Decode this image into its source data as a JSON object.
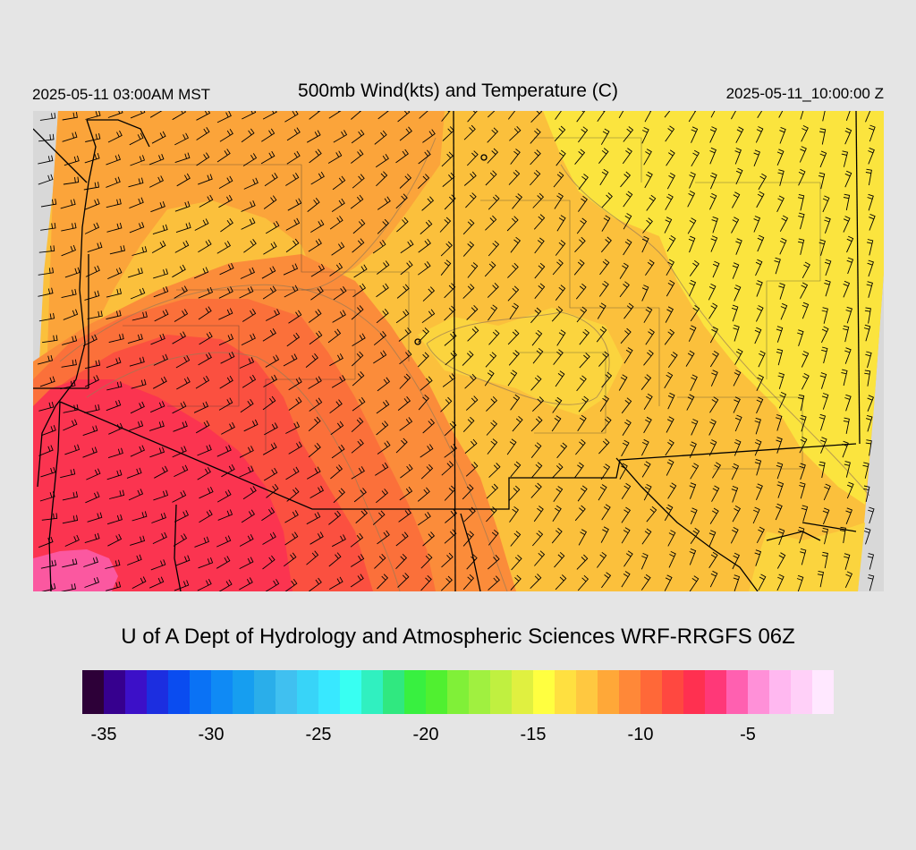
{
  "header": {
    "local_time": "2025-05-11 03:00AM MST",
    "title": "500mb Wind(kts) and Temperature (C)",
    "valid_time": "2025-05-11_10:00:00 Z"
  },
  "credit": "U of A Dept of Hydrology and Atmospheric Sciences WRF-RRGFS 06Z",
  "map": {
    "field": "500mb temperature (C) with wind barbs (kts)",
    "region": "Southwestern United States",
    "colors": {
      "background": "#e5e5e5",
      "no_data": "#d8d8d8",
      "boundaries": "#000000",
      "contours": "#9a7a55"
    }
  },
  "colorbar": {
    "min": -36,
    "max": -1,
    "colors": [
      "#2d0038",
      "#36008e",
      "#3c10c8",
      "#1c2ee0",
      "#0a4cf0",
      "#0a72f5",
      "#0f8af5",
      "#169ef0",
      "#2aaeea",
      "#40c0f0",
      "#38d4f8",
      "#38e8ff",
      "#38fff2",
      "#30f0c0",
      "#30e880",
      "#38f040",
      "#50f030",
      "#80f038",
      "#a0f040",
      "#c0f040",
      "#e0f040",
      "#ffff40",
      "#ffe040",
      "#ffc840",
      "#ffa838",
      "#ff8838",
      "#ff6838",
      "#ff4840",
      "#ff3050",
      "#ff3878",
      "#ff60b0",
      "#ff90d8",
      "#ffb8f0",
      "#ffd0f8",
      "#ffe8ff"
    ],
    "labels": [
      {
        "text": "-35",
        "value": -35
      },
      {
        "text": "-30",
        "value": -30
      },
      {
        "text": "-25",
        "value": -25
      },
      {
        "text": "-20",
        "value": -20
      },
      {
        "text": "-15",
        "value": -15
      },
      {
        "text": "-10",
        "value": -10
      },
      {
        "text": "-5",
        "value": -5
      }
    ]
  }
}
